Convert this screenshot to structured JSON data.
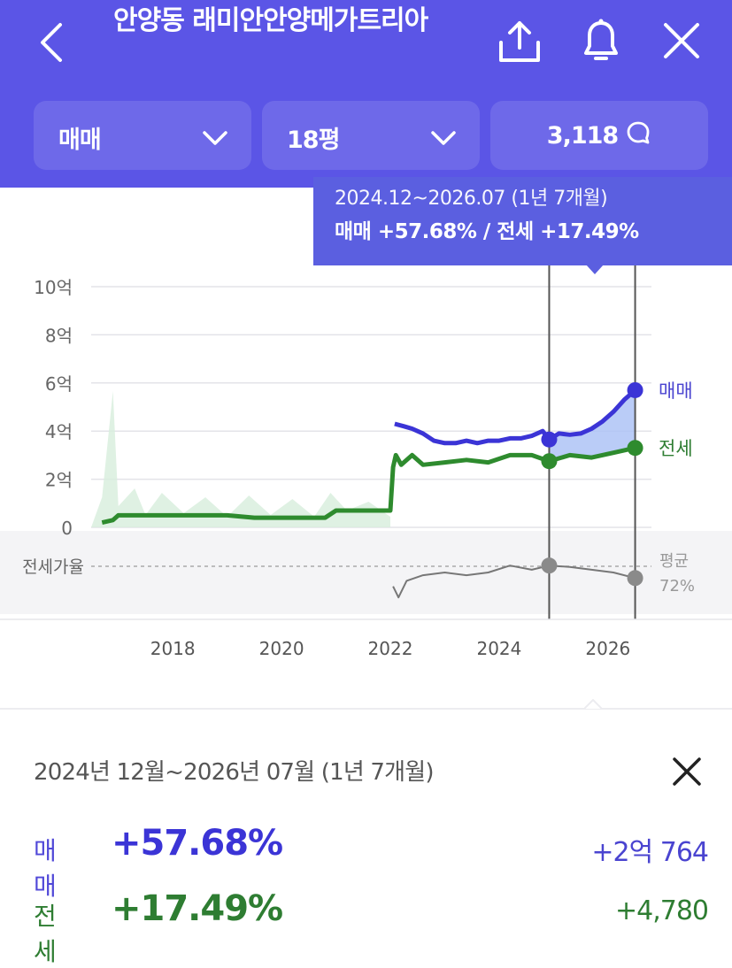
{
  "header": {
    "title": "안양동 래미안안양메가트리아",
    "back_icon": "back-arrow-icon",
    "share_icon": "share-icon",
    "bell_icon": "bell-icon",
    "close_icon": "close-icon",
    "trade_type_selected": "매매",
    "size_selected": "18평",
    "comment_count": "3,118"
  },
  "tooltip": {
    "range": "2024.12~2026.07 (1년 7개월)",
    "summary": "매매 +57.68%  /  전세 +17.49%"
  },
  "chart_data": {
    "type": "line",
    "y_ticks": [
      "10억",
      "8억",
      "6억",
      "4억",
      "2억",
      "0"
    ],
    "x_ticks": [
      "2018",
      "2020",
      "2022",
      "2024",
      "2026"
    ],
    "ylim": [
      0,
      10
    ],
    "ratio_label": "전세가율",
    "series": [
      {
        "name": "매매",
        "color": "#3b34d6",
        "x": [
          2022.08,
          2022.25,
          2022.4,
          2022.6,
          2022.8,
          2023.0,
          2023.2,
          2023.4,
          2023.6,
          2023.8,
          2024.0,
          2024.2,
          2024.4,
          2024.6,
          2024.8,
          2024.92,
          2025.1,
          2025.3,
          2025.5,
          2025.7,
          2025.9,
          2026.1,
          2026.3,
          2026.5
        ],
        "values": [
          4.3,
          4.2,
          4.1,
          3.9,
          3.6,
          3.5,
          3.5,
          3.6,
          3.5,
          3.6,
          3.6,
          3.7,
          3.7,
          3.8,
          4.0,
          3.65,
          3.9,
          3.85,
          3.9,
          4.1,
          4.4,
          4.8,
          5.3,
          5.7
        ]
      },
      {
        "name": "전세",
        "color": "#2e8b2e",
        "x": [
          2016.7,
          2016.9,
          2017.0,
          2018.0,
          2019.0,
          2019.5,
          2020.0,
          2020.5,
          2020.8,
          2021.0,
          2021.5,
          2022.0,
          2022.05,
          2022.1,
          2022.2,
          2022.4,
          2022.6,
          2023.0,
          2023.4,
          2023.8,
          2024.2,
          2024.6,
          2024.92,
          2025.3,
          2025.7,
          2026.1,
          2026.5
        ],
        "values": [
          0.2,
          0.3,
          0.5,
          0.5,
          0.5,
          0.4,
          0.4,
          0.4,
          0.4,
          0.7,
          0.7,
          0.7,
          2.5,
          3.0,
          2.6,
          3.0,
          2.6,
          2.7,
          2.8,
          2.7,
          3.0,
          3.0,
          2.75,
          3.0,
          2.9,
          3.1,
          3.3
        ]
      },
      {
        "name": "전세가율",
        "color": "#777777",
        "x": [
          2022.05,
          2022.15,
          2022.3,
          2022.6,
          2023.0,
          2023.4,
          2023.8,
          2024.2,
          2024.6,
          2024.92,
          2025.3,
          2025.7,
          2026.1,
          2026.5
        ],
        "values_pct": [
          60,
          52,
          64,
          68,
          70,
          68,
          70,
          75,
          72,
          75,
          74,
          72,
          70,
          66
        ]
      }
    ],
    "selected_range": [
      "2024.12",
      "2026.07"
    ],
    "end_labels": {
      "sale": "매매",
      "jeonse": "전세",
      "avg_label": "평균",
      "avg_value": "72%"
    }
  },
  "panel": {
    "range": "2024년 12월~2026년 07월 (1년 7개월)",
    "close_icon": "close-icon",
    "sale_label": "매매",
    "sale_pct": "+57.68%",
    "sale_amount": "+2억 764",
    "jeonse_label": "전세",
    "jeonse_pct": "+17.49%",
    "jeonse_amount": "+4,780"
  },
  "colors": {
    "header_bg": "#5b55e6",
    "sale": "#3b34d6",
    "jeonse": "#2e8b2e"
  }
}
